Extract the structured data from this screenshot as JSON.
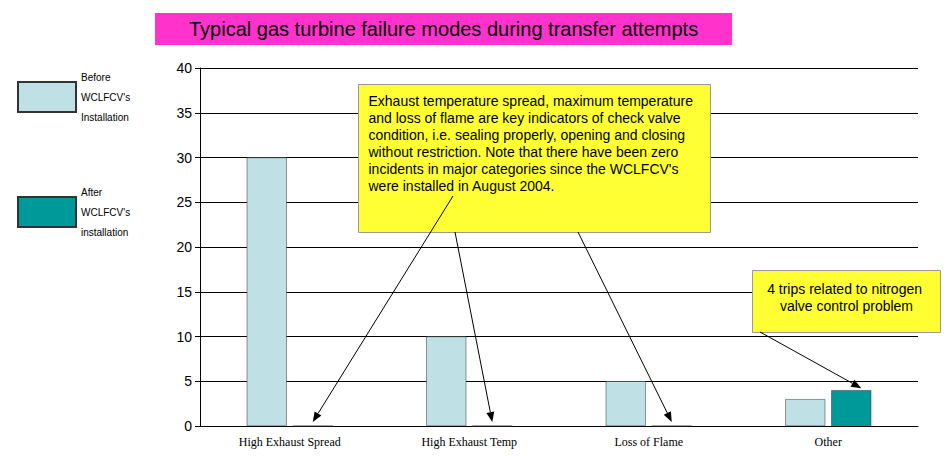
{
  "chart_data": {
    "type": "bar",
    "title": "Typical gas turbine failure modes during transfer attempts",
    "categories": [
      "High Exhaust Spread",
      "High Exhaust Temp",
      "Loss of Flame",
      "Other"
    ],
    "series": [
      {
        "name": "Before WCLFCV's Installation",
        "color": "#bfe0e4",
        "values": [
          30,
          10,
          5,
          3
        ]
      },
      {
        "name": "After WCLFCV's installation",
        "color": "#009999",
        "values": [
          0,
          0,
          0,
          4
        ]
      }
    ],
    "ylim": [
      0,
      40
    ],
    "yticks": [
      0,
      5,
      10,
      15,
      20,
      25,
      30,
      35,
      40
    ],
    "grid": true,
    "legend": "left",
    "annotations": [
      "Exhaust temperature spread, maximum temperature and loss of flame are key indicators of check valve condition, i.e. sealing properly, opening and closing without restriction. Note that there have been zero incidents in major categories since the WCLFCV's were installed in August 2004.",
      "4 trips related to nitrogen valve control problem"
    ]
  }
}
